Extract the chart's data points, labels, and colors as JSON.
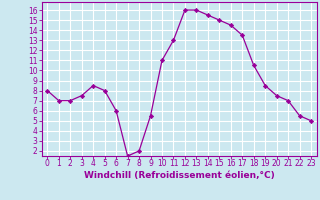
{
  "x": [
    0,
    1,
    2,
    3,
    4,
    5,
    6,
    7,
    8,
    9,
    10,
    11,
    12,
    13,
    14,
    15,
    16,
    17,
    18,
    19,
    20,
    21,
    22,
    23
  ],
  "y": [
    8,
    7,
    7,
    7.5,
    8.5,
    8,
    6,
    1.5,
    2,
    5.5,
    11,
    13,
    16,
    16,
    15.5,
    15,
    14.5,
    13.5,
    10.5,
    8.5,
    7.5,
    7,
    5.5,
    5
  ],
  "line_color": "#990099",
  "marker": "D",
  "marker_size": 2.2,
  "bg_color": "#cce8f0",
  "grid_color": "#ffffff",
  "xlabel": "Windchill (Refroidissement éolien,°C)",
  "xlabel_fontsize": 6.5,
  "ylabel_ticks": [
    2,
    3,
    4,
    5,
    6,
    7,
    8,
    9,
    10,
    11,
    12,
    13,
    14,
    15,
    16
  ],
  "ylim": [
    1.5,
    16.8
  ],
  "xlim": [
    -0.5,
    23.5
  ],
  "tick_fontsize": 5.5,
  "axis_color": "#990099",
  "spine_color": "#990099"
}
